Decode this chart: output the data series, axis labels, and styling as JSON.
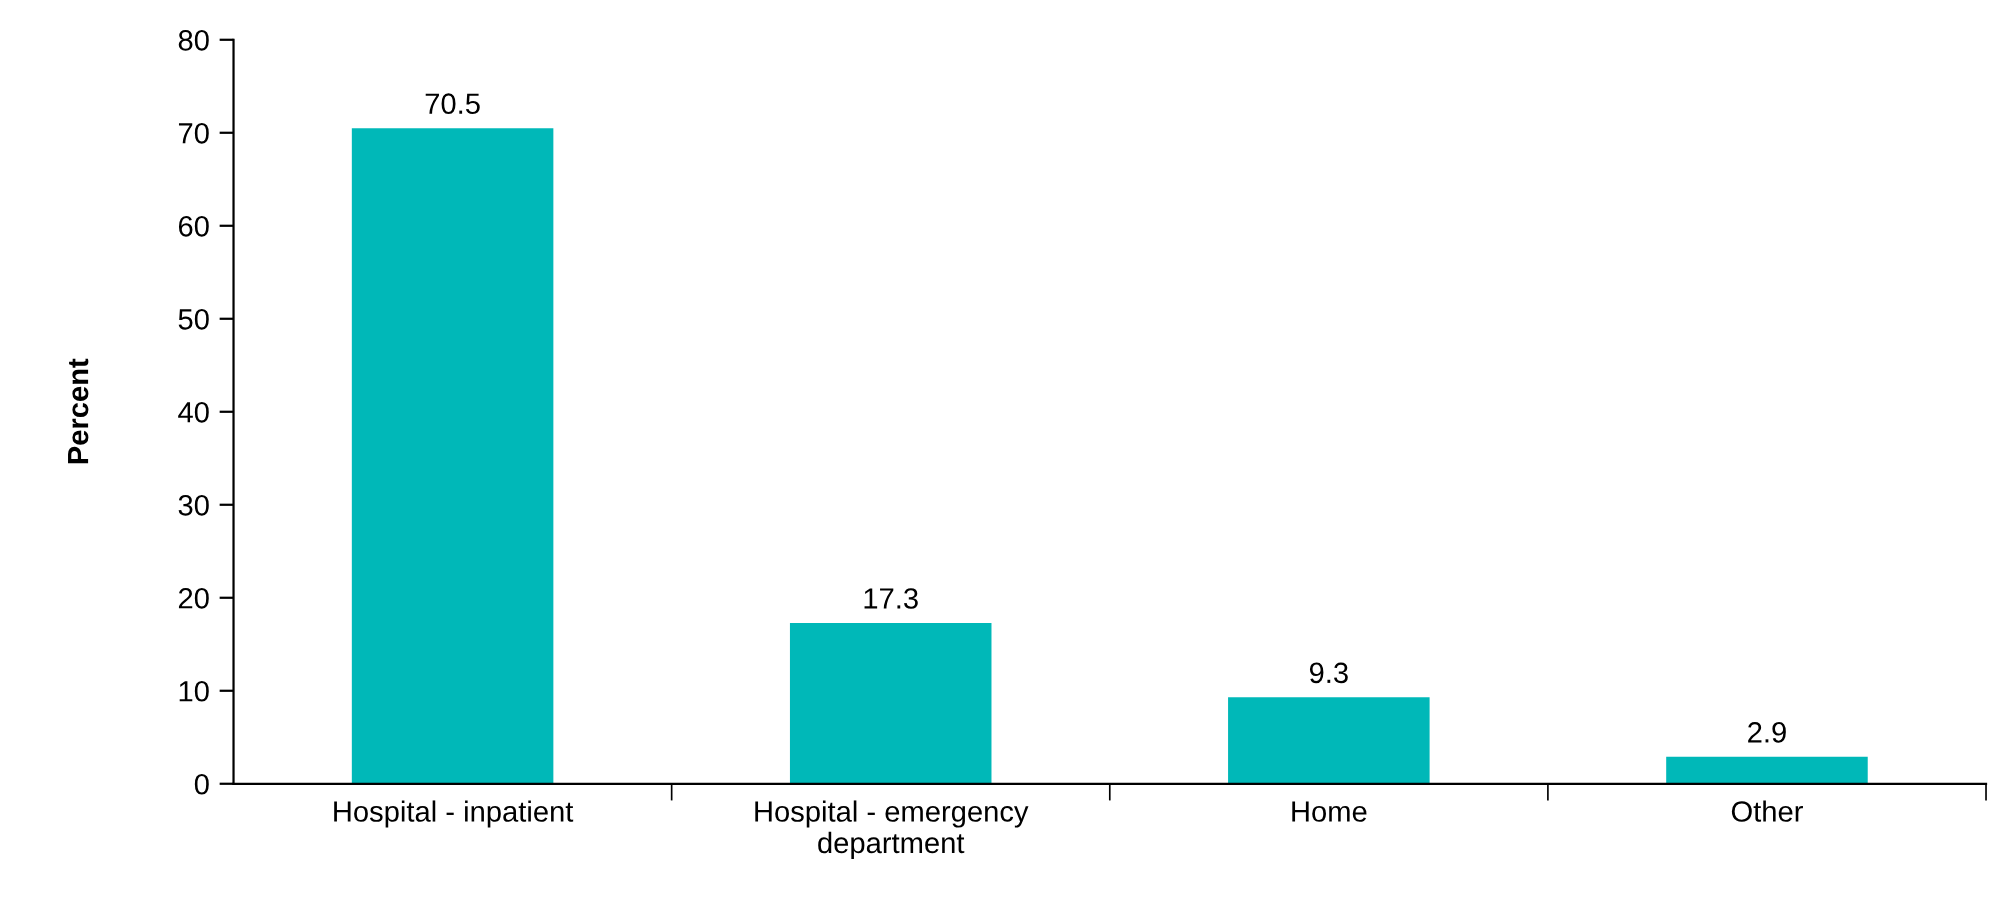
{
  "chart_data": {
    "type": "bar",
    "ylabel": "Percent",
    "categories": [
      "Hospital - inpatient",
      "Hospital - emergency\ndepartment",
      "Home",
      "Other"
    ],
    "values": [
      70.5,
      17.3,
      9.3,
      2.9
    ],
    "color": "#00b8b8",
    "ylim": [
      0,
      80
    ],
    "yticks": [
      0,
      10,
      20,
      30,
      40,
      50,
      60,
      70,
      80
    ],
    "data_labels": true,
    "grid": false,
    "legend": false
  }
}
